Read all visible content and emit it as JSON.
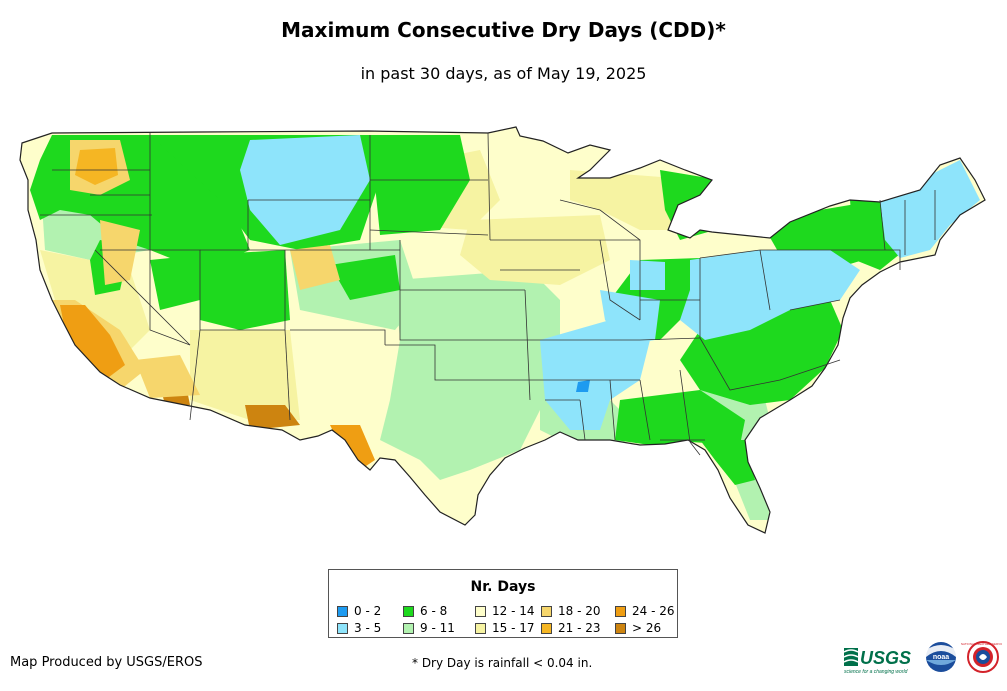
{
  "title": "Maximum Consecutive Dry Days (CDD)*",
  "subtitle": "in past 30 days, as of May 19, 2025",
  "legend": {
    "title": "Nr. Days",
    "items": [
      {
        "label": "0 - 2",
        "color": "#1e9bf0"
      },
      {
        "label": "3 - 5",
        "color": "#8ee4fb"
      },
      {
        "label": "6 - 8",
        "color": "#1ed91e"
      },
      {
        "label": "9 - 11",
        "color": "#b2f2b0"
      },
      {
        "label": "12 - 14",
        "color": "#fefecb"
      },
      {
        "label": "15 - 17",
        "color": "#f6f3a2"
      },
      {
        "label": "18 - 20",
        "color": "#f6d66c"
      },
      {
        "label": "21 - 23",
        "color": "#f5b623"
      },
      {
        "label": "24 - 26",
        "color": "#ef9e13"
      },
      {
        "label": "> 26",
        "color": "#cd8410"
      }
    ]
  },
  "credit": "Map Produced by USGS/EROS",
  "footnote": "* Dry Day is rainfall < 0.04 in.",
  "logos": {
    "usgs": {
      "text": "USGS",
      "tagline": "science for a changing world",
      "color": "#00704a"
    },
    "noaa": {
      "text": "noaa",
      "color": "#1b4d9c"
    },
    "nws": {
      "text": "NATIONAL WEATHER SERVICE",
      "color": "#d3222a"
    }
  }
}
